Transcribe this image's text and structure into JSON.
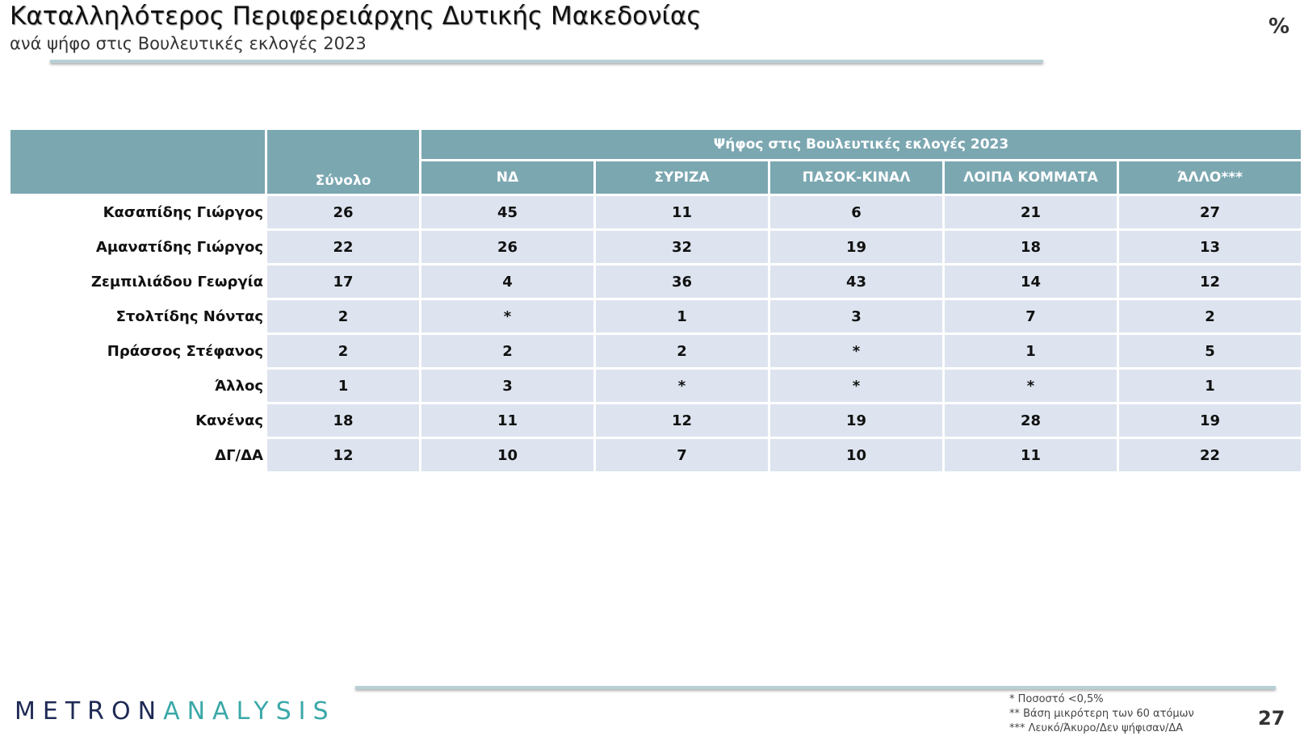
{
  "header": {
    "title": "Καταλληλότερος Περιφερειάρχης Δυτικής Μακεδονίας",
    "subtitle": "ανά ψήφο στις Βουλευτικές εκλογές 2023",
    "unit": "%"
  },
  "table": {
    "group_header": "Ψήφος στις Βουλευτικές εκλογές 2023",
    "total_header": "Σύνολο",
    "columns": [
      "ΝΔ",
      "ΣΥΡΙΖΑ",
      "ΠΑΣΟΚ-ΚΙΝΑΛ",
      "ΛΟΙΠΑ ΚΟΜΜΑΤΑ",
      "ΆΛΛΟ***"
    ],
    "rows": [
      {
        "label": "Κασαπίδης Γιώργος",
        "total": 26,
        "values": [
          45,
          11,
          6,
          21,
          27
        ]
      },
      {
        "label": "Αμανατίδης Γιώργος",
        "total": 22,
        "values": [
          26,
          32,
          19,
          18,
          13
        ]
      },
      {
        "label": "Ζεμπιλιάδου Γεωργία",
        "total": 17,
        "values": [
          4,
          36,
          43,
          14,
          12
        ]
      },
      {
        "label": "Στολτίδης Νόντας",
        "total": 2,
        "values": [
          "*",
          1,
          3,
          7,
          2
        ]
      },
      {
        "label": "Πράσσος Στέφανος",
        "total": 2,
        "values": [
          2,
          2,
          "*",
          1,
          5
        ]
      },
      {
        "label": "Άλλος",
        "total": 1,
        "values": [
          3,
          "*",
          "*",
          "*",
          1
        ]
      },
      {
        "label": "Κανένας",
        "total": 18,
        "values": [
          11,
          12,
          19,
          28,
          19
        ]
      },
      {
        "label": "ΔΓ/ΔΑ",
        "total": 12,
        "values": [
          10,
          7,
          10,
          11,
          22
        ]
      }
    ]
  },
  "footer": {
    "logo_left": "METRON",
    "logo_right": "ANALYSIS",
    "notes": [
      "*   Ποσοστό <0,5%",
      "** Βάση μικρότερη των 60 ατόμων",
      "*** Λευκό/Άκυρο/Δεν ψήφισαν/ΔΑ"
    ],
    "page_number": "27"
  }
}
